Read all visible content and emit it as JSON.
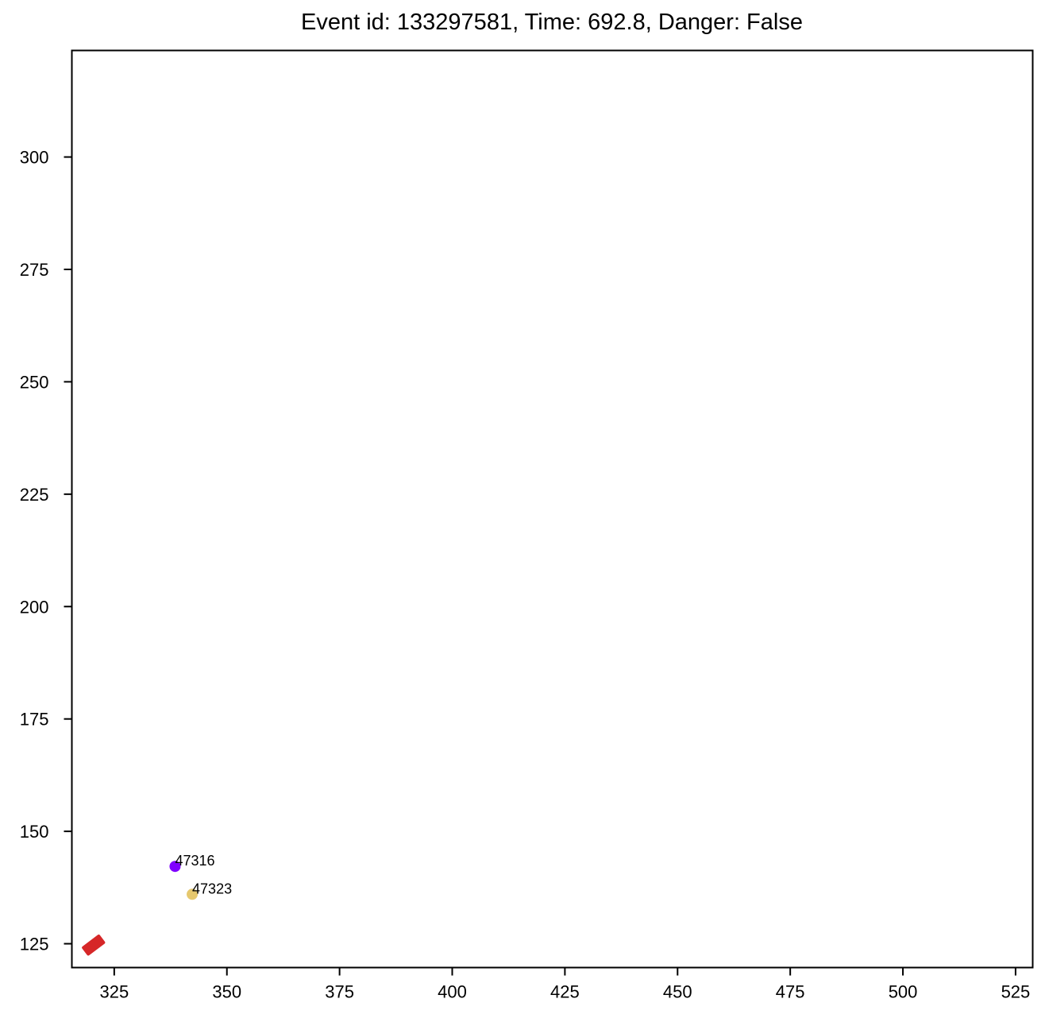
{
  "chart_data": {
    "type": "scatter",
    "title": "Event id: 133297581, Time: 692.8, Danger: False",
    "xlabel": "",
    "ylabel": "",
    "xlim": [
      315.6,
      528.8
    ],
    "ylim": [
      119.7,
      323.7
    ],
    "x_ticks": [
      "325",
      "350",
      "375",
      "400",
      "425",
      "450",
      "475",
      "500",
      "525"
    ],
    "y_ticks": [
      "125",
      "150",
      "175",
      "200",
      "225",
      "250",
      "275",
      "300"
    ],
    "grid": false,
    "points": [
      {
        "id": "47316",
        "x": 338.5,
        "y": 142.2,
        "color": "#7f00ff"
      },
      {
        "id": "47323",
        "x": 342.3,
        "y": 136.0,
        "color": "#e6c86e"
      }
    ],
    "ego_vehicle": {
      "x": 320.4,
      "y": 124.7,
      "angle_deg": 37,
      "color": "#d62728"
    }
  }
}
